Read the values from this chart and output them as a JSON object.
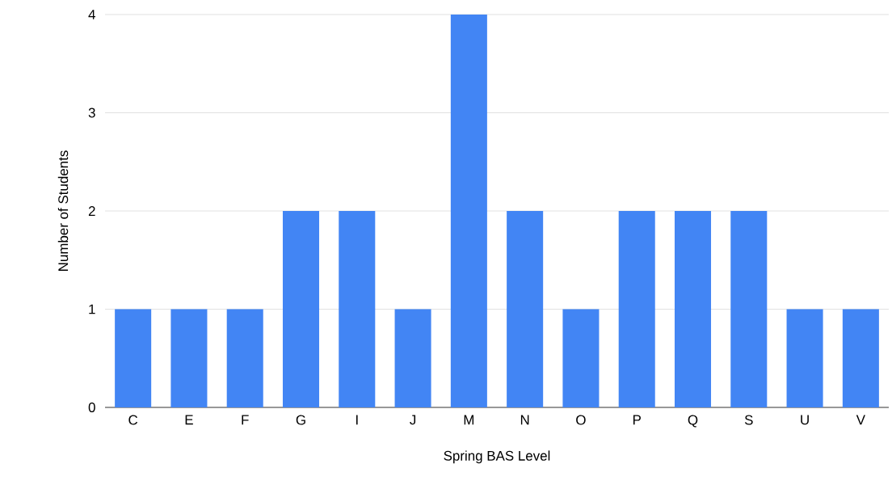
{
  "chart_data": {
    "type": "bar",
    "xlabel": "Spring BAS Level",
    "ylabel": "Number of Students",
    "categories": [
      "C",
      "E",
      "F",
      "G",
      "I",
      "J",
      "M",
      "N",
      "O",
      "P",
      "Q",
      "S",
      "U",
      "V"
    ],
    "values": [
      1,
      1,
      1,
      2,
      2,
      1,
      4,
      2,
      1,
      2,
      2,
      2,
      1,
      1
    ],
    "color": "#4285f4",
    "ylim": [
      0,
      4
    ],
    "yticks": [
      0,
      1,
      2,
      3,
      4
    ],
    "grid": "y"
  }
}
